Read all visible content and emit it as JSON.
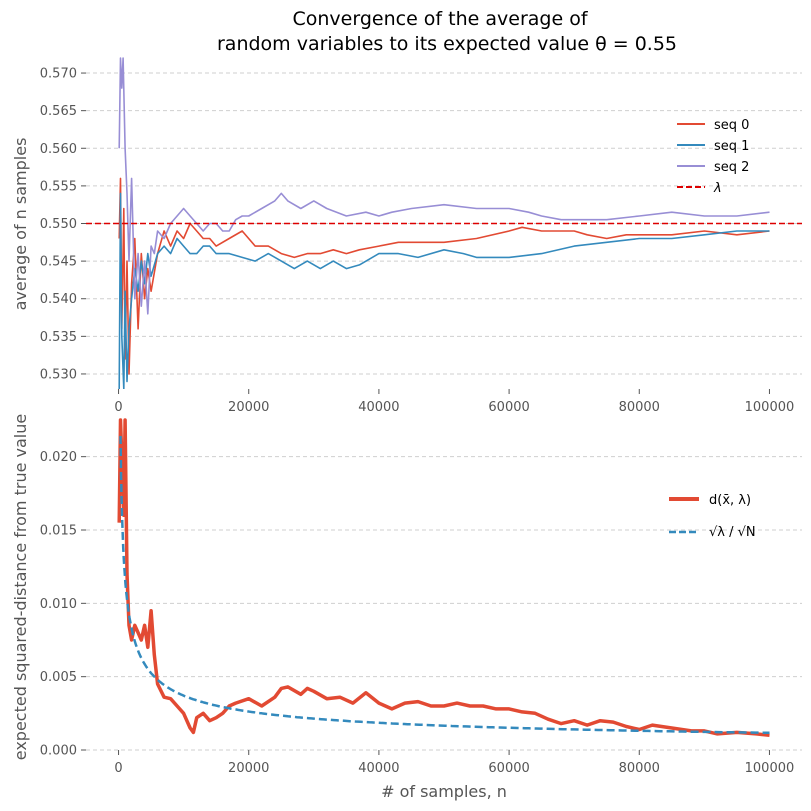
{
  "chart_data": [
    {
      "type": "line",
      "title": [
        "Convergence of the average of",
        "random variables to its expected value θ = 0.55"
      ],
      "xlabel": "",
      "ylabel": "average of n samples",
      "xlim": [
        -5000,
        105000
      ],
      "ylim": [
        0.528,
        0.572
      ],
      "xticks": [
        0,
        20000,
        40000,
        60000,
        80000,
        100000
      ],
      "yticks": [
        0.53,
        0.535,
        0.54,
        0.545,
        0.55,
        0.555,
        0.56,
        0.565,
        0.57
      ],
      "xtick_labels": [
        "0",
        "20000",
        "40000",
        "60000",
        "80000",
        "100000"
      ],
      "ytick_labels": [
        "0.530",
        "0.535",
        "0.540",
        "0.545",
        "0.550",
        "0.555",
        "0.560",
        "0.565",
        "0.570"
      ],
      "legend_position": "upper-right",
      "series": [
        {
          "name": "seq 0",
          "color": "#e24a33",
          "x": [
            100,
            300,
            500,
            800,
            1000,
            1300,
            1600,
            2000,
            2500,
            3000,
            3500,
            4000,
            4500,
            5000,
            6000,
            7000,
            8000,
            9000,
            10000,
            11000,
            12000,
            13000,
            14000,
            15000,
            17000,
            19000,
            21000,
            23000,
            25000,
            27000,
            29000,
            31000,
            33000,
            35000,
            37000,
            40000,
            43000,
            46000,
            50000,
            55000,
            60000,
            62000,
            65000,
            68000,
            70000,
            72000,
            75000,
            78000,
            80000,
            85000,
            90000,
            95000,
            100000
          ],
          "values": [
            0.548,
            0.556,
            0.536,
            0.552,
            0.532,
            0.545,
            0.53,
            0.542,
            0.548,
            0.536,
            0.546,
            0.54,
            0.544,
            0.541,
            0.546,
            0.549,
            0.547,
            0.549,
            0.548,
            0.55,
            0.549,
            0.548,
            0.548,
            0.547,
            0.548,
            0.549,
            0.547,
            0.547,
            0.546,
            0.5455,
            0.546,
            0.546,
            0.5465,
            0.546,
            0.5465,
            0.547,
            0.5475,
            0.5475,
            0.5475,
            0.548,
            0.549,
            0.5495,
            0.549,
            0.549,
            0.549,
            0.5485,
            0.548,
            0.5485,
            0.5485,
            0.5485,
            0.549,
            0.5485,
            0.549
          ]
        },
        {
          "name": "seq 1",
          "color": "#348abd",
          "x": [
            100,
            300,
            500,
            800,
            1000,
            1300,
            1600,
            2000,
            2500,
            3000,
            3500,
            4000,
            4500,
            5000,
            6000,
            7000,
            8000,
            9000,
            10000,
            11000,
            12000,
            13000,
            14000,
            15000,
            17000,
            19000,
            21000,
            23000,
            25000,
            27000,
            29000,
            31000,
            33000,
            35000,
            37000,
            40000,
            43000,
            46000,
            50000,
            53000,
            55000,
            60000,
            65000,
            70000,
            75000,
            80000,
            85000,
            90000,
            95000,
            100000
          ],
          "values": [
            0.528,
            0.554,
            0.535,
            0.528,
            0.541,
            0.529,
            0.536,
            0.54,
            0.544,
            0.541,
            0.545,
            0.542,
            0.546,
            0.543,
            0.546,
            0.547,
            0.546,
            0.548,
            0.547,
            0.546,
            0.546,
            0.547,
            0.547,
            0.546,
            0.546,
            0.5455,
            0.545,
            0.546,
            0.545,
            0.544,
            0.545,
            0.544,
            0.545,
            0.544,
            0.5445,
            0.546,
            0.546,
            0.5455,
            0.5465,
            0.546,
            0.5455,
            0.5455,
            0.546,
            0.547,
            0.5475,
            0.548,
            0.548,
            0.5485,
            0.549,
            0.549
          ]
        },
        {
          "name": "seq 2",
          "color": "#988ed5",
          "x": [
            100,
            300,
            500,
            700,
            1000,
            1300,
            1600,
            2000,
            2500,
            3000,
            3500,
            4000,
            4500,
            5000,
            5500,
            6000,
            7000,
            8000,
            9000,
            10000,
            11000,
            12000,
            13000,
            14000,
            15000,
            16000,
            17000,
            18000,
            19000,
            20000,
            22000,
            24000,
            25000,
            26000,
            28000,
            30000,
            32000,
            35000,
            38000,
            40000,
            42000,
            45000,
            50000,
            55000,
            60000,
            63000,
            65000,
            68000,
            70000,
            75000,
            80000,
            85000,
            90000,
            95000,
            100000
          ],
          "values": [
            0.56,
            0.572,
            0.568,
            0.572,
            0.56,
            0.554,
            0.545,
            0.556,
            0.54,
            0.546,
            0.539,
            0.545,
            0.538,
            0.547,
            0.546,
            0.549,
            0.548,
            0.55,
            0.551,
            0.552,
            0.551,
            0.55,
            0.549,
            0.55,
            0.55,
            0.549,
            0.549,
            0.5505,
            0.551,
            0.551,
            0.552,
            0.553,
            0.554,
            0.553,
            0.552,
            0.553,
            0.552,
            0.551,
            0.5515,
            0.551,
            0.5515,
            0.552,
            0.5525,
            0.552,
            0.552,
            0.5515,
            0.551,
            0.5505,
            0.5505,
            0.5505,
            0.551,
            0.5515,
            0.551,
            0.551,
            0.5515
          ]
        },
        {
          "name": "λ",
          "color": "#dd0000",
          "dashed": true,
          "x": [
            -5000,
            105000
          ],
          "values": [
            0.55,
            0.55
          ]
        }
      ]
    },
    {
      "type": "line",
      "title": "",
      "xlabel": "# of samples, n",
      "ylabel": "expected squared-distance from true value",
      "xlim": [
        -5000,
        105000
      ],
      "ylim": [
        0.0,
        0.0225
      ],
      "xticks": [
        0,
        20000,
        40000,
        60000,
        80000,
        100000
      ],
      "yticks": [
        0.0,
        0.005,
        0.01,
        0.015,
        0.02
      ],
      "xtick_labels": [
        "0",
        "20000",
        "40000",
        "60000",
        "80000",
        "100000"
      ],
      "ytick_labels": [
        "0.000",
        "0.005",
        "0.010",
        "0.015",
        "0.020"
      ],
      "legend_position": "upper-right",
      "series": [
        {
          "name": "d(x̄, λ)",
          "color": "#e24a33",
          "x": [
            100,
            300,
            500,
            800,
            1000,
            1300,
            1600,
            2000,
            2500,
            3000,
            3500,
            4000,
            4500,
            5000,
            5500,
            6000,
            7000,
            8000,
            9000,
            10000,
            11000,
            11500,
            12000,
            13000,
            14000,
            15000,
            16000,
            17000,
            18000,
            20000,
            22000,
            24000,
            25000,
            26000,
            28000,
            29000,
            30000,
            32000,
            34000,
            36000,
            38000,
            40000,
            42000,
            44000,
            46000,
            48000,
            50000,
            52000,
            54000,
            56000,
            58000,
            60000,
            62000,
            64000,
            66000,
            68000,
            70000,
            72000,
            74000,
            76000,
            78000,
            80000,
            82000,
            85000,
            88000,
            90000,
            92000,
            95000,
            98000,
            100000
          ],
          "values": [
            0.0155,
            0.0225,
            0.02,
            0.016,
            0.0225,
            0.012,
            0.0085,
            0.0075,
            0.0085,
            0.008,
            0.0075,
            0.0085,
            0.007,
            0.0095,
            0.0065,
            0.0045,
            0.0036,
            0.0035,
            0.003,
            0.0025,
            0.0015,
            0.0012,
            0.0022,
            0.0025,
            0.002,
            0.0022,
            0.0025,
            0.003,
            0.0032,
            0.0035,
            0.003,
            0.0036,
            0.0042,
            0.0043,
            0.0038,
            0.0042,
            0.004,
            0.0035,
            0.0036,
            0.0032,
            0.0039,
            0.0032,
            0.0028,
            0.0032,
            0.0033,
            0.003,
            0.003,
            0.0032,
            0.003,
            0.003,
            0.0028,
            0.0028,
            0.0026,
            0.0025,
            0.0021,
            0.0018,
            0.002,
            0.0017,
            0.002,
            0.0019,
            0.0016,
            0.0014,
            0.0017,
            0.0015,
            0.0013,
            0.0013,
            0.0011,
            0.0012,
            0.0011,
            0.001
          ]
        },
        {
          "name": "√λ / √N",
          "color": "#348abd",
          "dashed": true,
          "function": "0.5 * sqrt(0.55) / sqrt(n)",
          "x_range": [
            300,
            100000
          ]
        }
      ]
    }
  ]
}
